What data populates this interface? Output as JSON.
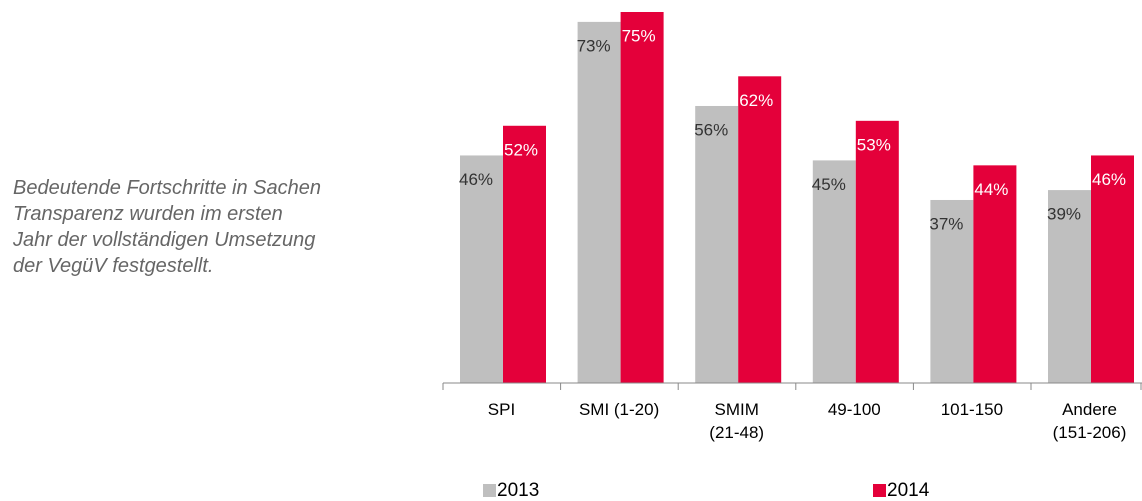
{
  "chart_data": {
    "type": "bar",
    "annotation_lines": [
      "Bedeutende Fortschritte in Sachen",
      "Transparenz wurden im ersten",
      "Jahr der vollständigen Umsetzung",
      "der VegüV festgestellt."
    ],
    "categories": [
      "SPI",
      "SMI (1-20)",
      "SMIM\n(21-48)",
      "49-100",
      "101-150",
      "Andere\n(151-206)"
    ],
    "series": [
      {
        "name": "2013",
        "color": "#bfbfbf",
        "values": [
          46,
          73,
          56,
          45,
          37,
          39
        ],
        "value_labels": [
          "46%",
          "73%",
          "56%",
          "45%",
          "37%",
          "39%"
        ]
      },
      {
        "name": "2014",
        "color": "#e4003a",
        "values": [
          52,
          75,
          62,
          53,
          44,
          46
        ],
        "value_labels": [
          "52%",
          "75%",
          "62%",
          "53%",
          "44%",
          "46%"
        ]
      }
    ],
    "ylim": [
      0,
      75
    ]
  }
}
